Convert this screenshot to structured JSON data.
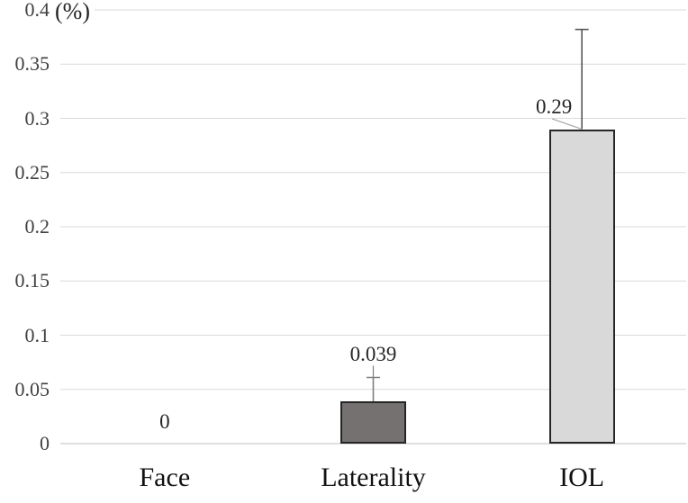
{
  "chart_data": {
    "type": "bar",
    "title": "",
    "ylabel": "(%)",
    "xlabel": "",
    "ylim": [
      0,
      0.4
    ],
    "grid": true,
    "legend": false,
    "yticks": [
      {
        "value": 0,
        "label": "0"
      },
      {
        "value": 0.05,
        "label": "0.05"
      },
      {
        "value": 0.1,
        "label": "0.1"
      },
      {
        "value": 0.15,
        "label": "0.15"
      },
      {
        "value": 0.2,
        "label": "0.2"
      },
      {
        "value": 0.25,
        "label": "0.25"
      },
      {
        "value": 0.3,
        "label": "0.3"
      },
      {
        "value": 0.35,
        "label": "0.35"
      },
      {
        "value": 0.4,
        "label": "0.4"
      }
    ],
    "categories": [
      "Face",
      "Laterality",
      "IOL"
    ],
    "series": [
      {
        "name": "Face",
        "value": 0,
        "label": "0",
        "error_plus": null,
        "bar_fill": null,
        "bar_border": null,
        "error_color": null,
        "label_placement": "baseline-center"
      },
      {
        "name": "Laterality",
        "value": 0.039,
        "label": "0.039",
        "error_plus": 0.022,
        "bar_fill": "#767171",
        "bar_border": "#262626",
        "error_color": "#808080",
        "label_placement": "above-error"
      },
      {
        "name": "IOL",
        "value": 0.29,
        "label": "0.29",
        "error_plus": 0.092,
        "bar_fill": "#d9d9d9",
        "bar_border": "#262626",
        "error_color": "#4d4d4d",
        "label_placement": "left-of-error"
      }
    ],
    "colors": {
      "background": "#ffffff",
      "gridline": "#d9d9d9",
      "axis_line": "#bfbfbf",
      "tick_text": "#404040",
      "label_text": "#262626",
      "category_text": "#111111",
      "leader_line": "#a6a6a6"
    }
  }
}
